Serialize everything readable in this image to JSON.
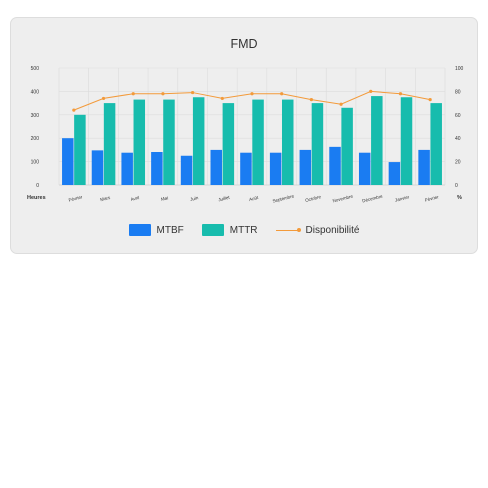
{
  "chart_data": {
    "type": "bar",
    "title": "FMD",
    "categories": [
      "Février",
      "Mars",
      "Avril",
      "Mai",
      "Juin",
      "Juillet",
      "Août",
      "Septembre",
      "Octobre",
      "Novembre",
      "Décembre",
      "Janvier",
      "Février"
    ],
    "series": [
      {
        "name": "MTBF",
        "type": "bar",
        "axis": "left",
        "color": "#1a7cf2",
        "values": [
          200,
          148,
          138,
          141,
          125,
          150,
          138,
          138,
          150,
          163,
          138,
          98,
          150
        ]
      },
      {
        "name": "MTTR",
        "type": "bar",
        "axis": "left",
        "color": "#17bcad",
        "values": [
          300,
          350,
          365,
          365,
          375,
          350,
          365,
          365,
          350,
          330,
          380,
          375,
          350
        ]
      },
      {
        "name": "Disponibilité",
        "type": "line",
        "axis": "right",
        "color": "#f39a3a",
        "values": [
          64,
          74,
          78,
          78,
          79,
          74,
          78,
          78,
          73,
          69,
          80,
          78,
          73
        ]
      }
    ],
    "yleft": {
      "label": "Heures",
      "ticks": [
        0,
        100,
        200,
        300,
        400,
        500
      ],
      "lim": [
        0,
        500
      ]
    },
    "yright": {
      "label": "%",
      "ticks": [
        0,
        20,
        40,
        60,
        80,
        100
      ],
      "lim": [
        0,
        100
      ]
    },
    "grid": true,
    "legend": "bottom"
  }
}
